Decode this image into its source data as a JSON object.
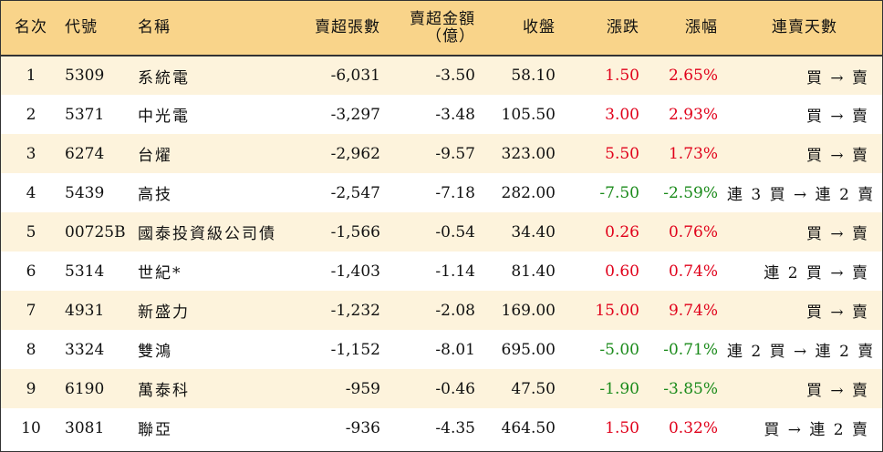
{
  "headers": {
    "rank": "名次",
    "code": "代號",
    "name": "名稱",
    "net_sell_volume": "賣超張數",
    "net_sell_amount_line1": "賣超金額",
    "net_sell_amount_line2": "（億）",
    "close": "收盤",
    "change": "漲跌",
    "change_pct": "漲幅",
    "streak": "連賣天數"
  },
  "colors": {
    "header_bg": "#f9d48a",
    "stripe_bg": "#fdf3dc",
    "up": "#e0001a",
    "down": "#1a8a1a"
  },
  "rows": [
    {
      "rank": "1",
      "code": "5309",
      "name": "系統電",
      "net_sell_volume": "-6,031",
      "net_sell_amount": "-3.50",
      "close": "58.10",
      "change": "1.50",
      "change_pct": "2.65%",
      "direction": "up",
      "streak": "買 → 賣"
    },
    {
      "rank": "2",
      "code": "5371",
      "name": "中光電",
      "net_sell_volume": "-3,297",
      "net_sell_amount": "-3.48",
      "close": "105.50",
      "change": "3.00",
      "change_pct": "2.93%",
      "direction": "up",
      "streak": "買 → 賣"
    },
    {
      "rank": "3",
      "code": "6274",
      "name": "台燿",
      "net_sell_volume": "-2,962",
      "net_sell_amount": "-9.57",
      "close": "323.00",
      "change": "5.50",
      "change_pct": "1.73%",
      "direction": "up",
      "streak": "買 → 賣"
    },
    {
      "rank": "4",
      "code": "5439",
      "name": "高技",
      "net_sell_volume": "-2,547",
      "net_sell_amount": "-7.18",
      "close": "282.00",
      "change": "-7.50",
      "change_pct": "-2.59%",
      "direction": "down",
      "streak": "連 3 買 → 連 2 賣"
    },
    {
      "rank": "5",
      "code": "00725B",
      "name": "國泰投資級公司債",
      "net_sell_volume": "-1,566",
      "net_sell_amount": "-0.54",
      "close": "34.40",
      "change": "0.26",
      "change_pct": "0.76%",
      "direction": "up",
      "streak": "買 → 賣"
    },
    {
      "rank": "6",
      "code": "5314",
      "name": "世紀*",
      "net_sell_volume": "-1,403",
      "net_sell_amount": "-1.14",
      "close": "81.40",
      "change": "0.60",
      "change_pct": "0.74%",
      "direction": "up",
      "streak": "連 2 買 → 賣"
    },
    {
      "rank": "7",
      "code": "4931",
      "name": "新盛力",
      "net_sell_volume": "-1,232",
      "net_sell_amount": "-2.08",
      "close": "169.00",
      "change": "15.00",
      "change_pct": "9.74%",
      "direction": "up",
      "streak": "買 → 賣"
    },
    {
      "rank": "8",
      "code": "3324",
      "name": "雙鴻",
      "net_sell_volume": "-1,152",
      "net_sell_amount": "-8.01",
      "close": "695.00",
      "change": "-5.00",
      "change_pct": "-0.71%",
      "direction": "down",
      "streak": "連 2 買 → 連 2 賣"
    },
    {
      "rank": "9",
      "code": "6190",
      "name": "萬泰科",
      "net_sell_volume": "-959",
      "net_sell_amount": "-0.46",
      "close": "47.50",
      "change": "-1.90",
      "change_pct": "-3.85%",
      "direction": "down",
      "streak": "買 → 賣"
    },
    {
      "rank": "10",
      "code": "3081",
      "name": "聯亞",
      "net_sell_volume": "-936",
      "net_sell_amount": "-4.35",
      "close": "464.50",
      "change": "1.50",
      "change_pct": "0.32%",
      "direction": "up",
      "streak": "買 → 連 2 賣"
    }
  ]
}
